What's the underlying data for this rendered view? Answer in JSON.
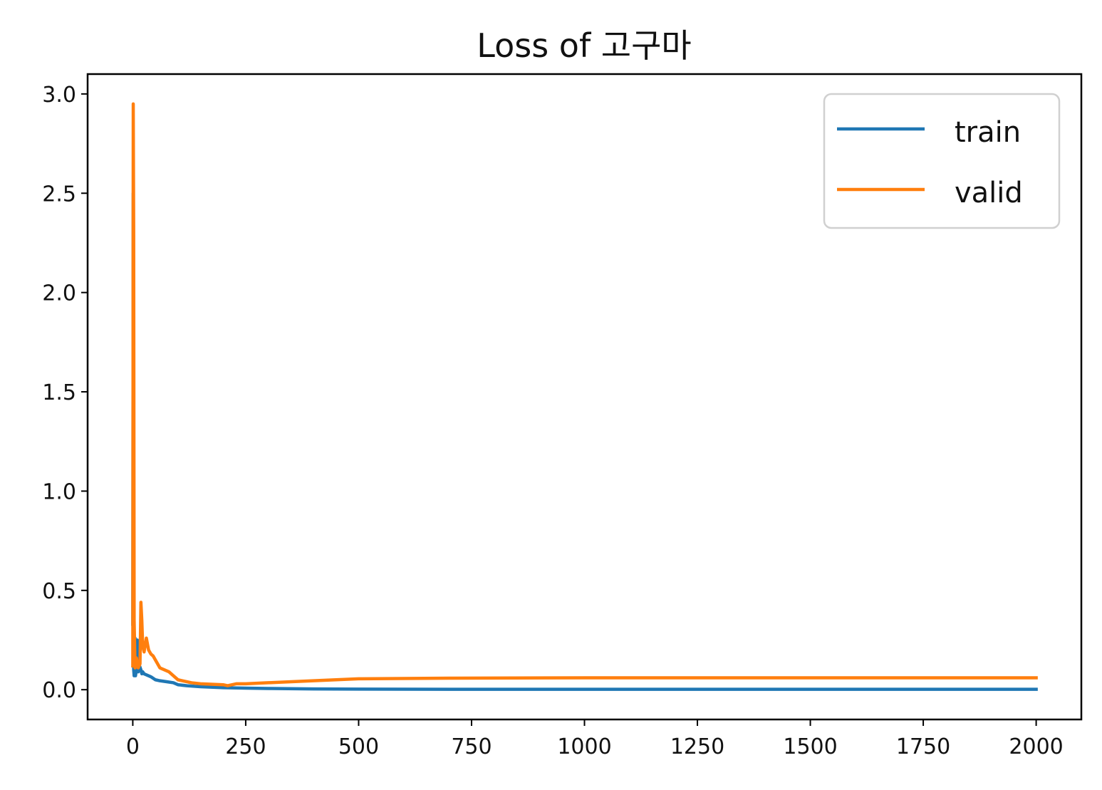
{
  "chart_data": {
    "type": "line",
    "title": "Loss of 고구마",
    "xlabel": "",
    "ylabel": "",
    "xlim": [
      -100,
      2100
    ],
    "ylim": [
      -0.15,
      3.1
    ],
    "xticks": [
      0,
      250,
      500,
      750,
      1000,
      1250,
      1500,
      1750,
      2000
    ],
    "xtick_labels": [
      "0",
      "250",
      "500",
      "750",
      "1000",
      "1250",
      "1500",
      "1750",
      "2000"
    ],
    "yticks": [
      0.0,
      0.5,
      1.0,
      1.5,
      2.0,
      2.5,
      3.0
    ],
    "ytick_labels": [
      "0.0",
      "0.5",
      "1.0",
      "1.5",
      "2.0",
      "2.5",
      "3.0"
    ],
    "grid": false,
    "legend_position": "top-right",
    "series": [
      {
        "name": "train",
        "color": "#1f77b4",
        "x": [
          0,
          1,
          2,
          3,
          4,
          5,
          6,
          8,
          10,
          12,
          15,
          18,
          20,
          22,
          25,
          30,
          40,
          50,
          60,
          75,
          90,
          100,
          120,
          150,
          200,
          250,
          300,
          400,
          500,
          700,
          1000,
          1500,
          2000
        ],
        "y": [
          0.33,
          2.5,
          0.1,
          0.07,
          0.09,
          0.26,
          0.07,
          0.1,
          0.25,
          0.09,
          0.12,
          0.1,
          0.08,
          0.09,
          0.08,
          0.075,
          0.065,
          0.05,
          0.045,
          0.04,
          0.035,
          0.025,
          0.02,
          0.015,
          0.01,
          0.008,
          0.006,
          0.004,
          0.003,
          0.002,
          0.002,
          0.002,
          0.002
        ]
      },
      {
        "name": "valid",
        "color": "#ff7f0e",
        "x": [
          0,
          1,
          2,
          3,
          5,
          8,
          12,
          16,
          18,
          20,
          22,
          25,
          30,
          35,
          40,
          45,
          50,
          60,
          70,
          80,
          90,
          100,
          110,
          130,
          150,
          200,
          210,
          220,
          230,
          250,
          300,
          400,
          500,
          700,
          1000,
          1500,
          2000
        ],
        "y": [
          0.12,
          2.95,
          2.3,
          0.35,
          0.11,
          0.16,
          0.11,
          0.13,
          0.44,
          0.35,
          0.22,
          0.19,
          0.26,
          0.2,
          0.18,
          0.17,
          0.15,
          0.11,
          0.1,
          0.09,
          0.07,
          0.05,
          0.045,
          0.035,
          0.03,
          0.025,
          0.02,
          0.025,
          0.03,
          0.03,
          0.035,
          0.045,
          0.055,
          0.058,
          0.06,
          0.06,
          0.06
        ]
      }
    ]
  }
}
